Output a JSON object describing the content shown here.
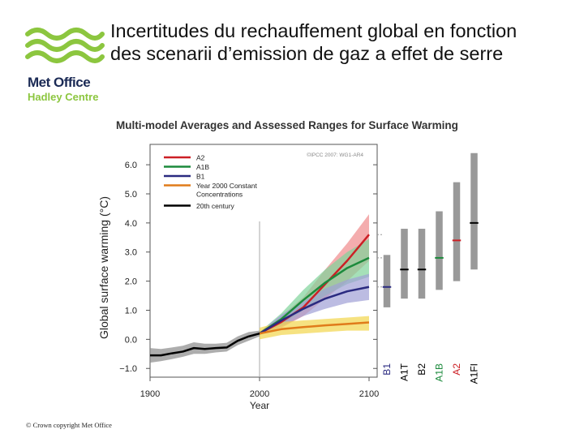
{
  "header": {
    "title_line1": "Incertitudes du rechauffement global en fonction",
    "title_line2": "des scenarii d’emission de gaz a effet de serre"
  },
  "logo": {
    "line1": "Met Office",
    "line2": "Hadley Centre",
    "colors": {
      "wave": "#8cc63f",
      "text": "#1b2a55"
    }
  },
  "footer": {
    "copyright": "© Crown copyright Met Office"
  },
  "chart_data": {
    "type": "line",
    "title": "Multi-model Averages and Assessed Ranges for Surface Warming",
    "credit": "©IPCC 2007: WG1-AR4",
    "xlabel": "Year",
    "ylabel": "Global surface warming (°C)",
    "xlim": [
      1900,
      2100
    ],
    "ylim": [
      -1.3,
      6.7
    ],
    "xticks": [
      "1900",
      "2000",
      "2100"
    ],
    "yticks": [
      "6.0",
      "5.0",
      "4.0",
      "3.0",
      "2.0",
      "1.0",
      "0.0",
      "−1.0"
    ],
    "divider_year": 2000,
    "legend_position": "top-left",
    "series": [
      {
        "name": "A2",
        "color": "#cc1f25",
        "band": "#f08a8c",
        "x": [
          2000,
          2020,
          2040,
          2060,
          2080,
          2100
        ],
        "y": [
          0.2,
          0.6,
          1.1,
          1.9,
          2.7,
          3.6
        ],
        "lo": [
          0.15,
          0.4,
          0.8,
          1.4,
          2.0,
          2.7
        ],
        "hi": [
          0.25,
          0.8,
          1.45,
          2.4,
          3.3,
          4.3
        ]
      },
      {
        "name": "A1B",
        "color": "#1c8a3c",
        "band": "#7fd39a",
        "x": [
          2000,
          2020,
          2040,
          2060,
          2080,
          2100
        ],
        "y": [
          0.2,
          0.7,
          1.35,
          1.95,
          2.45,
          2.8
        ],
        "lo": [
          0.15,
          0.5,
          1.0,
          1.5,
          1.9,
          2.15
        ],
        "hi": [
          0.25,
          0.9,
          1.7,
          2.4,
          3.0,
          3.45
        ]
      },
      {
        "name": "B1",
        "color": "#2a2a80",
        "band": "#9f9fd6",
        "x": [
          2000,
          2020,
          2040,
          2060,
          2080,
          2100
        ],
        "y": [
          0.2,
          0.65,
          1.05,
          1.4,
          1.65,
          1.8
        ],
        "lo": [
          0.15,
          0.45,
          0.8,
          1.05,
          1.25,
          1.35
        ],
        "hi": [
          0.25,
          0.85,
          1.3,
          1.75,
          2.05,
          2.25
        ]
      },
      {
        "name": "Year 2000 Constant Concentrations",
        "color": "#e07b1a",
        "band": "#f2d64b",
        "x": [
          2000,
          2020,
          2040,
          2060,
          2080,
          2100
        ],
        "y": [
          0.2,
          0.35,
          0.42,
          0.48,
          0.53,
          0.58
        ],
        "lo": [
          0.0,
          0.15,
          0.2,
          0.25,
          0.3,
          0.3
        ],
        "hi": [
          0.4,
          0.6,
          0.65,
          0.7,
          0.75,
          0.8
        ]
      },
      {
        "name": "20th century",
        "color": "#000000",
        "band": "#8a8a8a",
        "x": [
          1900,
          1910,
          1920,
          1930,
          1940,
          1950,
          1960,
          1970,
          1980,
          1990,
          2000
        ],
        "y": [
          -0.55,
          -0.55,
          -0.48,
          -0.42,
          -0.3,
          -0.33,
          -0.3,
          -0.28,
          -0.05,
          0.1,
          0.2
        ],
        "lo": [
          -0.8,
          -0.75,
          -0.68,
          -0.6,
          -0.5,
          -0.5,
          -0.45,
          -0.42,
          -0.2,
          -0.05,
          0.1
        ],
        "hi": [
          -0.3,
          -0.33,
          -0.28,
          -0.22,
          -0.1,
          -0.15,
          -0.15,
          -0.12,
          0.1,
          0.25,
          0.3
        ]
      }
    ],
    "ranges": [
      {
        "name": "B1",
        "color": "#2a2a80",
        "low": 1.1,
        "best": 1.8,
        "high": 2.9
      },
      {
        "name": "A1T",
        "color": "#000000",
        "low": 1.4,
        "best": 2.4,
        "high": 3.8
      },
      {
        "name": "B2",
        "color": "#000000",
        "low": 1.4,
        "best": 2.4,
        "high": 3.8
      },
      {
        "name": "A1B",
        "color": "#1c8a3c",
        "low": 1.7,
        "best": 2.8,
        "high": 4.4
      },
      {
        "name": "A2",
        "color": "#cc1f25",
        "low": 2.0,
        "best": 3.4,
        "high": 5.4
      },
      {
        "name": "A1FI",
        "color": "#000000",
        "low": 2.4,
        "best": 4.0,
        "high": 6.4
      }
    ]
  }
}
